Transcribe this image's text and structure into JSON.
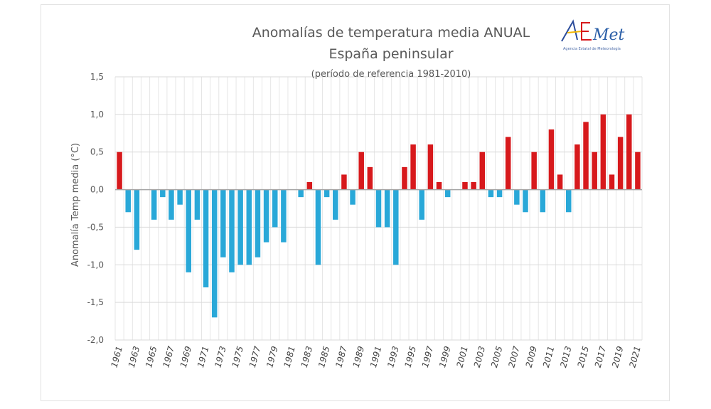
{
  "chart_data": {
    "type": "bar",
    "title": "Anomalías de temperatura media ANUAL",
    "subtitle": "España peninsular",
    "note": "(período de referencia 1981-2010)",
    "xlabel": "",
    "ylabel": "Anomalía Temp media (°C)",
    "ylim": [
      -2.0,
      1.5
    ],
    "yticks": [
      1.5,
      1.0,
      0.5,
      0.0,
      -0.5,
      -1.0,
      -1.5,
      -2.0
    ],
    "ytick_labels": [
      "1,5",
      "1,0",
      "0,5",
      "0,0",
      "-0,5",
      "-1,0",
      "-1,5",
      "-2,0"
    ],
    "grid": true,
    "legend": "none",
    "colors": {
      "positive": "#d7191c",
      "negative": "#29a8d8",
      "zero_line": "#a6a6a6",
      "grid": "#e6e6e6"
    },
    "categories": [
      1961,
      1962,
      1963,
      1964,
      1965,
      1966,
      1967,
      1968,
      1969,
      1970,
      1971,
      1972,
      1973,
      1974,
      1975,
      1976,
      1977,
      1978,
      1979,
      1980,
      1981,
      1982,
      1983,
      1984,
      1985,
      1986,
      1987,
      1988,
      1989,
      1990,
      1991,
      1992,
      1993,
      1994,
      1995,
      1996,
      1997,
      1998,
      1999,
      2000,
      2001,
      2002,
      2003,
      2004,
      2005,
      2006,
      2007,
      2008,
      2009,
      2010,
      2011,
      2012,
      2013,
      2014,
      2015,
      2016,
      2017,
      2018,
      2019,
      2020,
      2021
    ],
    "xtick_labels": [
      "1961",
      "1963",
      "1965",
      "1967",
      "1969",
      "1971",
      "1973",
      "1975",
      "1977",
      "1979",
      "1981",
      "1983",
      "1985",
      "1987",
      "1989",
      "1991",
      "1993",
      "1995",
      "1997",
      "1999",
      "2001",
      "2003",
      "2005",
      "2007",
      "2009",
      "2011",
      "2013",
      "2015",
      "2017",
      "2019",
      "2021"
    ],
    "values": [
      0.5,
      -0.3,
      -0.8,
      0.0,
      -0.4,
      -0.1,
      -0.4,
      -0.2,
      -1.1,
      -0.4,
      -1.3,
      -1.7,
      -0.9,
      -1.1,
      -1.0,
      -1.0,
      -0.9,
      -0.7,
      -0.5,
      -0.7,
      0.0,
      -0.1,
      0.1,
      -1.0,
      -0.1,
      -0.4,
      0.2,
      -0.2,
      0.5,
      0.3,
      -0.5,
      -0.5,
      -1.0,
      0.3,
      0.6,
      -0.4,
      0.6,
      0.1,
      -0.1,
      0.0,
      0.1,
      0.1,
      0.5,
      -0.1,
      -0.1,
      0.7,
      -0.2,
      -0.3,
      0.5,
      -0.3,
      0.8,
      0.2,
      -0.3,
      0.6,
      0.9,
      0.5,
      1.0,
      0.2,
      0.7,
      1.0,
      0.5
    ]
  },
  "logo": {
    "text": "AEmet",
    "subtitle": "Agencia Estatal de Meteorología"
  }
}
